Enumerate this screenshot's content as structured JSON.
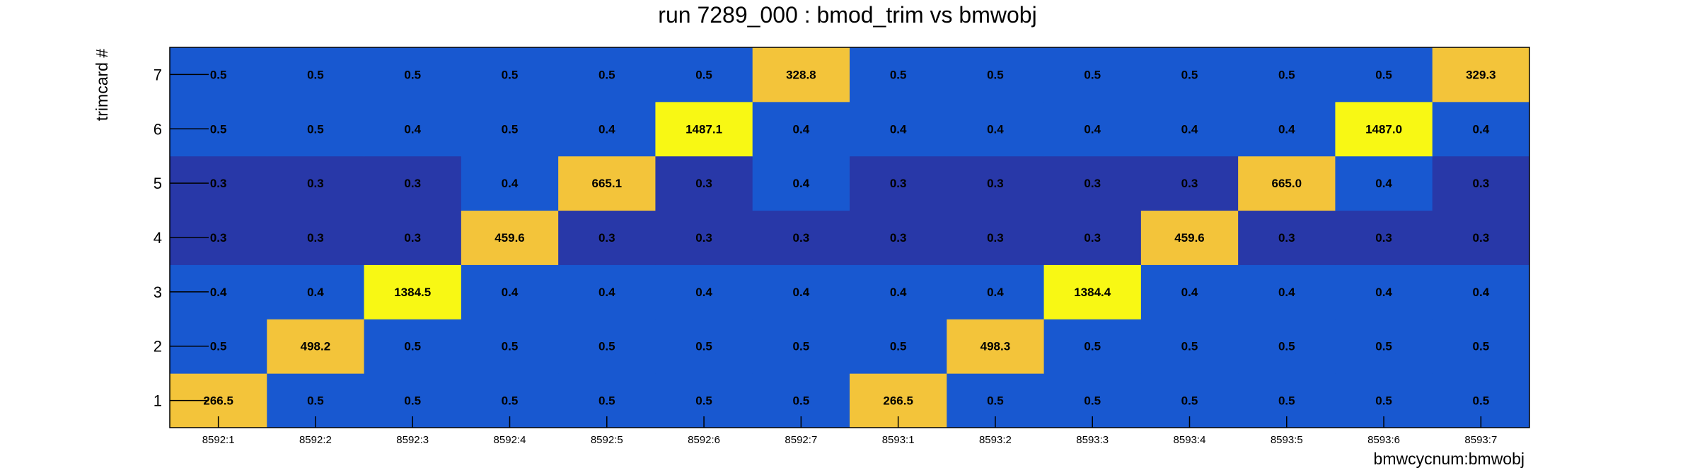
{
  "chart_data": {
    "type": "heatmap",
    "title": "run 7289_000 : bmod_trim vs bmwobj",
    "xlabel": "bmwcycnum:bmwobj",
    "ylabel": "trimcard #",
    "x_categories": [
      "8592:1",
      "8592:2",
      "8592:3",
      "8592:4",
      "8592:5",
      "8592:6",
      "8592:7",
      "8593:1",
      "8593:2",
      "8593:3",
      "8593:4",
      "8593:5",
      "8593:6",
      "8593:7"
    ],
    "y_categories": [
      "1",
      "2",
      "3",
      "4",
      "5",
      "6",
      "7"
    ],
    "values": [
      [
        "266.5",
        "0.5",
        "0.5",
        "0.5",
        "0.5",
        "0.5",
        "0.5",
        "266.5",
        "0.5",
        "0.5",
        "0.5",
        "0.5",
        "0.5",
        "0.5"
      ],
      [
        "0.5",
        "498.2",
        "0.5",
        "0.5",
        "0.5",
        "0.5",
        "0.5",
        "0.5",
        "498.3",
        "0.5",
        "0.5",
        "0.5",
        "0.5",
        "0.5"
      ],
      [
        "0.4",
        "0.4",
        "1384.5",
        "0.4",
        "0.4",
        "0.4",
        "0.4",
        "0.4",
        "0.4",
        "1384.4",
        "0.4",
        "0.4",
        "0.4",
        "0.4"
      ],
      [
        "0.3",
        "0.3",
        "0.3",
        "459.6",
        "0.3",
        "0.3",
        "0.3",
        "0.3",
        "0.3",
        "0.3",
        "459.6",
        "0.3",
        "0.3",
        "0.3"
      ],
      [
        "0.3",
        "0.3",
        "0.3",
        "0.4",
        "665.1",
        "0.3",
        "0.4",
        "0.3",
        "0.3",
        "0.3",
        "0.3",
        "665.0",
        "0.4",
        "0.3"
      ],
      [
        "0.5",
        "0.5",
        "0.4",
        "0.5",
        "0.4",
        "1487.1",
        "0.4",
        "0.4",
        "0.4",
        "0.4",
        "0.4",
        "0.4",
        "1487.0",
        "0.4"
      ],
      [
        "0.5",
        "0.5",
        "0.5",
        "0.5",
        "0.5",
        "0.5",
        "328.8",
        "0.5",
        "0.5",
        "0.5",
        "0.5",
        "0.5",
        "0.5",
        "329.3"
      ]
    ],
    "colors": {
      "low": "#2838a8",
      "mid_low": "#1858d0",
      "mid_high": "#f3c43a",
      "high": "#f8f814"
    },
    "grid": false,
    "legend": "none"
  }
}
